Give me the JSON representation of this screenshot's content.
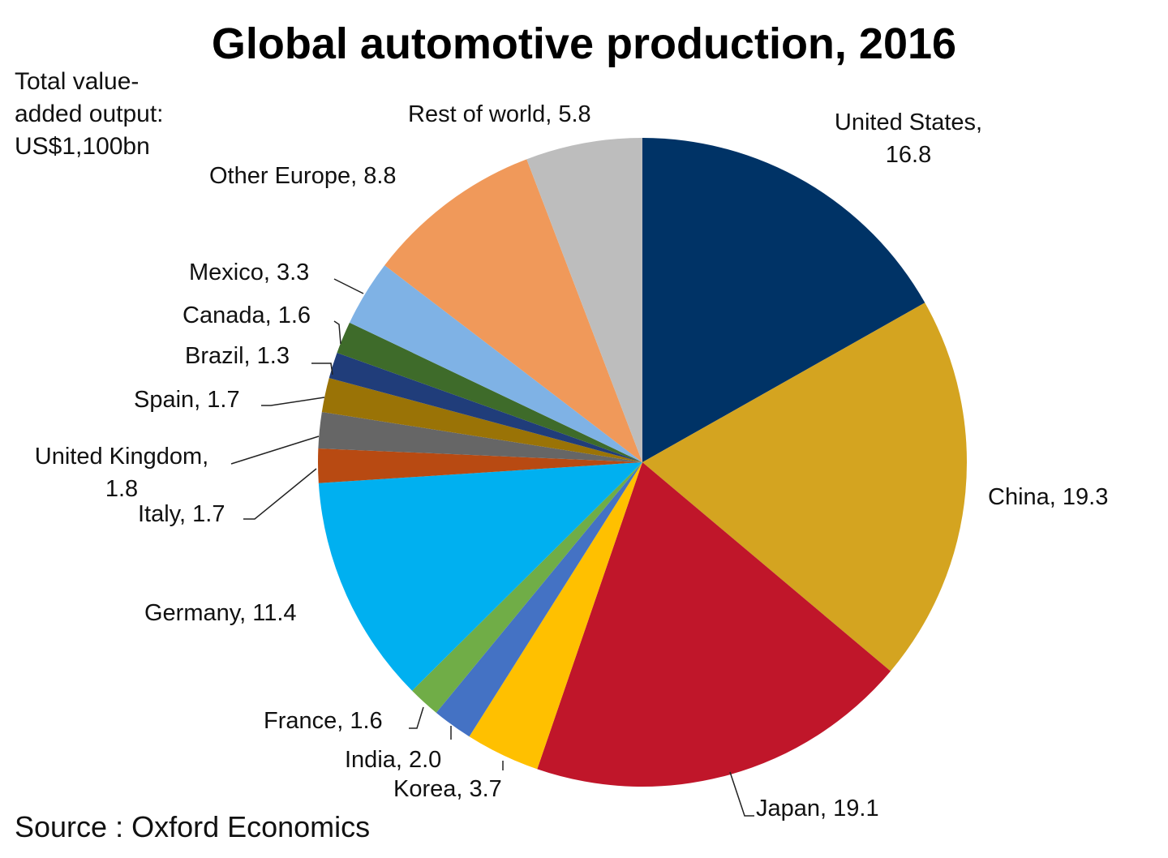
{
  "chart_data": {
    "type": "pie",
    "title": "Global automotive production, 2016",
    "note_lines": [
      "Total value-",
      "added output:",
      "US$1,100bn"
    ],
    "source": "Source : Oxford Economics",
    "slices": [
      {
        "label": "United States, 16.8",
        "name": "United States",
        "value": 16.8,
        "color": "#003366"
      },
      {
        "label": "China, 19.3",
        "name": "China",
        "value": 19.3,
        "color": "#D4A420"
      },
      {
        "label": "Japan, 19.1",
        "name": "Japan",
        "value": 19.1,
        "color": "#C0162A"
      },
      {
        "label": "Korea, 3.7",
        "name": "Korea",
        "value": 3.7,
        "color": "#FFC000"
      },
      {
        "label": "India, 2.0",
        "name": "India",
        "value": 2.0,
        "color": "#4472C4"
      },
      {
        "label": "France, 1.6",
        "name": "France",
        "value": 1.6,
        "color": "#70AD47"
      },
      {
        "label": "Germany, 11.4",
        "name": "Germany",
        "value": 11.4,
        "color": "#00B0F0"
      },
      {
        "label": "Italy, 1.7",
        "name": "Italy",
        "value": 1.7,
        "color": "#B84A12"
      },
      {
        "label": "United Kingdom, 1.8",
        "name": "United Kingdom",
        "value": 1.8,
        "color": "#666666"
      },
      {
        "label": "Spain, 1.7",
        "name": "Spain",
        "value": 1.7,
        "color": "#9A7306"
      },
      {
        "label": "Brazil, 1.3",
        "name": "Brazil",
        "value": 1.3,
        "color": "#203D7A"
      },
      {
        "label": "Canada, 1.6",
        "name": "Canada",
        "value": 1.6,
        "color": "#3E6B2A"
      },
      {
        "label": "Mexico, 3.3",
        "name": "Mexico",
        "value": 3.3,
        "color": "#7FB2E5"
      },
      {
        "label": "Other Europe, 8.8",
        "name": "Other Europe",
        "value": 8.8,
        "color": "#F0995A"
      },
      {
        "label": "Rest of world, 5.8",
        "name": "Rest of world",
        "value": 5.8,
        "color": "#BDBDBD"
      }
    ]
  }
}
